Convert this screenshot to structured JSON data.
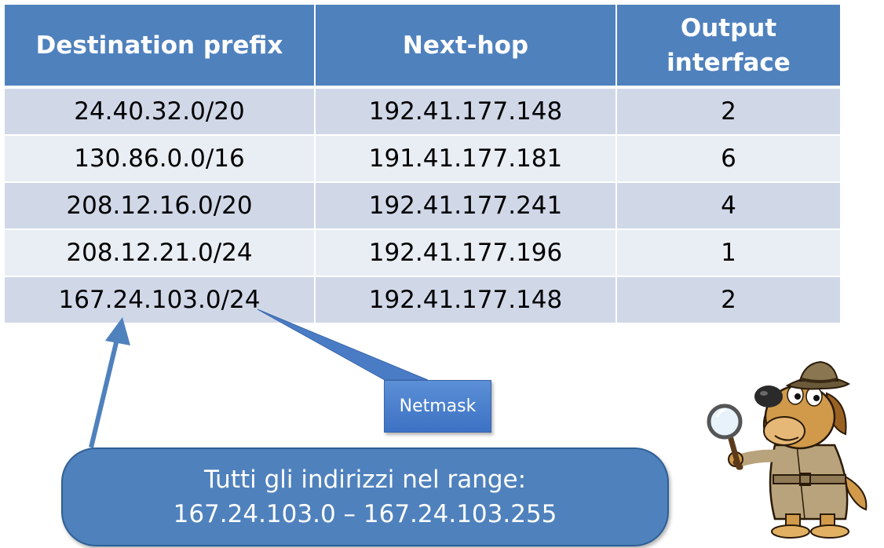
{
  "table": {
    "headers": [
      "Destination prefix",
      "Next-hop",
      "Output interface"
    ],
    "rows": [
      [
        "24.40.32.0/20",
        "192.41.177.148",
        "2"
      ],
      [
        "130.86.0.0/16",
        "191.41.177.181",
        "6"
      ],
      [
        "208.12.16.0/20",
        "192.41.177.241",
        "4"
      ],
      [
        "208.12.21.0/24",
        "192.41.177.196",
        "1"
      ],
      [
        "167.24.103.0/24",
        "192.41.177.148",
        "2"
      ]
    ]
  },
  "callouts": {
    "netmask": "Netmask",
    "range_line1": "Tutti gli indirizzi nel range:",
    "range_line2": "167.24.103.0 – 167.24.103.255"
  },
  "colors": {
    "header": "#4f81bd",
    "row_odd": "#d0d8e8",
    "row_even": "#e9edf4",
    "arrow": "#4f81bd"
  },
  "icons": {
    "mascot": "detective-dog-with-magnifying-glass"
  }
}
